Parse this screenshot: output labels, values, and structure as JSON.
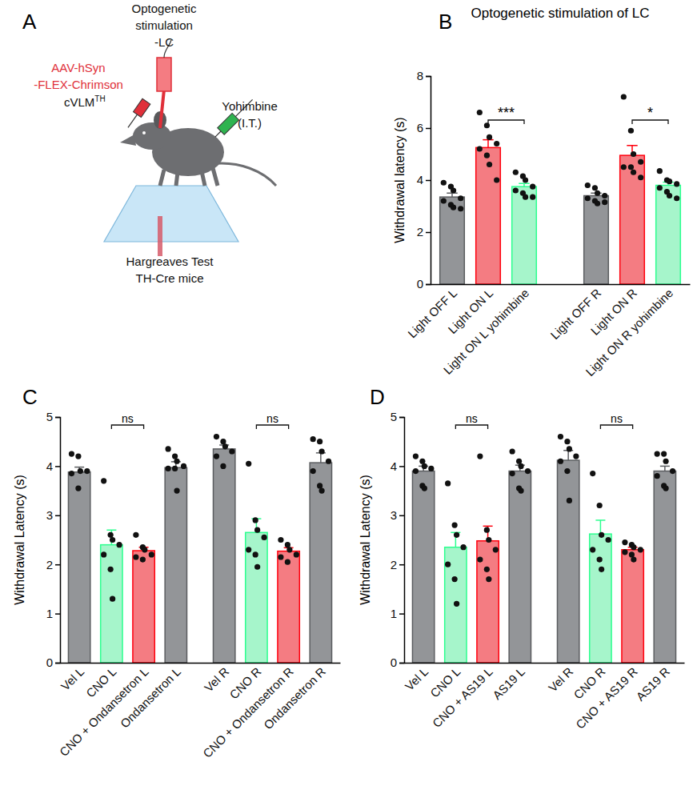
{
  "diagram": {
    "panel": "A",
    "labels": {
      "stimulation": [
        "Optogenetic",
        "stimulation",
        "-LC"
      ],
      "virus": [
        "AAV-hSyn",
        "-FLEX-Chrimson"
      ],
      "target": {
        "text": "cVLM",
        "superscript": "TH"
      },
      "drug": [
        "Yohimbine",
        "(I.T.)"
      ],
      "test": [
        "Hargreaves Test",
        "TH-Cre mice"
      ]
    }
  },
  "chart_data": [
    {
      "type": "bar",
      "panel": "B",
      "title": "Optogenetic stimulation of LC",
      "y_label": "Withdrawal latency (s)",
      "categories": [
        "Light OFF L",
        "Light ON L",
        "Light ON L yohimbine",
        "Light OFF R",
        "Light ON R",
        "Light ON R yohimbine"
      ],
      "values": [
        3.35,
        5.25,
        3.75,
        3.4,
        4.95,
        3.8
      ],
      "errors": [
        0.15,
        0.3,
        0.12,
        0.1,
        0.38,
        0.12
      ],
      "points": [
        [
          3.9,
          3.75,
          3.6,
          3.3,
          3.2,
          3.05,
          2.95,
          2.9
        ],
        [
          6.6,
          6.1,
          5.65,
          5.4,
          5.2,
          4.95,
          4.6,
          4.0
        ],
        [
          4.3,
          4.15,
          4.0,
          3.75,
          3.6,
          3.5,
          3.35,
          3.35
        ],
        [
          3.8,
          3.7,
          3.5,
          3.4,
          3.3,
          3.2,
          3.1,
          3.15
        ],
        [
          7.2,
          5.9,
          5.0,
          4.7,
          4.5,
          4.5,
          4.3,
          4.1
        ],
        [
          4.35,
          4.0,
          3.95,
          3.85,
          3.7,
          3.55,
          3.4,
          3.3
        ]
      ],
      "colors": [
        "#939598",
        "#f47c82",
        "#a6f5cb",
        "#939598",
        "#f47c82",
        "#a6f5cb"
      ],
      "ylim": [
        0,
        8
      ],
      "yticks": [
        0,
        2,
        4,
        6,
        8
      ],
      "annotations": [
        {
          "text": "***",
          "between": [
            "Light ON L",
            "Light ON L yohimbine"
          ]
        },
        {
          "text": "*",
          "between": [
            "Light ON R",
            "Light ON R yohimbine"
          ]
        }
      ]
    },
    {
      "type": "bar",
      "panel": "C",
      "y_label": "Withdrawal Latency (s)",
      "categories": [
        "Vel L",
        "CNO L",
        "CNO + Ondansetron L",
        "Ondansetron L",
        "Vel R",
        "CNO R",
        "CNO + Ondansetron R",
        "Ondansetron R"
      ],
      "values": [
        3.88,
        2.4,
        2.28,
        3.97,
        4.35,
        2.65,
        2.27,
        4.07
      ],
      "errors": [
        0.1,
        0.3,
        0.07,
        0.12,
        0.08,
        0.28,
        0.07,
        0.2
      ],
      "points": [
        [
          4.25,
          4.2,
          3.9,
          3.9,
          3.85,
          3.55
        ],
        [
          3.7,
          2.6,
          2.5,
          2.4,
          2.2,
          1.9,
          1.3
        ],
        [
          2.6,
          2.35,
          2.3,
          2.2,
          2.15,
          2.1
        ],
        [
          4.35,
          4.2,
          4.1,
          4.0,
          3.95,
          3.95,
          3.5
        ],
        [
          4.6,
          4.5,
          4.4,
          4.3,
          4.2,
          4.0
        ],
        [
          4.05,
          2.9,
          2.7,
          2.55,
          2.3,
          2.2,
          1.95
        ],
        [
          2.5,
          2.4,
          2.3,
          2.2,
          2.15,
          2.05
        ],
        [
          4.55,
          4.5,
          4.3,
          4.1,
          3.9,
          3.6,
          3.5
        ]
      ],
      "colors": [
        "#939598",
        "#a6f5cb",
        "#f47c82",
        "#939598",
        "#939598",
        "#a6f5cb",
        "#f47c82",
        "#939598"
      ],
      "ylim": [
        0,
        5
      ],
      "yticks": [
        0,
        1,
        2,
        3,
        4,
        5
      ],
      "annotations": [
        {
          "text": "ns",
          "between": [
            "CNO L",
            "CNO + Ondansetron L"
          ]
        },
        {
          "text": "ns",
          "between": [
            "CNO R",
            "CNO + Ondansetron R"
          ]
        }
      ]
    },
    {
      "type": "bar",
      "panel": "D",
      "y_label": "Withdrawal Latency (s)",
      "categories": [
        "Vel L",
        "CNO L",
        "CNO + AS19 L",
        "AS19 L",
        "Vel R",
        "CNO R",
        "CNO + AS19 R",
        "AS19 R"
      ],
      "values": [
        3.9,
        2.35,
        2.48,
        3.9,
        4.12,
        2.62,
        2.3,
        3.9
      ],
      "errors": [
        0.1,
        0.3,
        0.3,
        0.12,
        0.2,
        0.28,
        0.05,
        0.1
      ],
      "points": [
        [
          4.2,
          4.1,
          4.0,
          3.95,
          3.9,
          3.6,
          3.55
        ],
        [
          3.65,
          2.8,
          2.6,
          2.35,
          2.0,
          1.7,
          1.2
        ],
        [
          4.2,
          2.7,
          2.5,
          2.3,
          2.1,
          1.9,
          1.7
        ],
        [
          4.3,
          4.1,
          4.0,
          3.9,
          3.85,
          3.55,
          3.5
        ],
        [
          4.6,
          4.5,
          4.35,
          4.2,
          4.1,
          3.9,
          3.3
        ],
        [
          3.85,
          3.2,
          2.6,
          2.5,
          2.3,
          2.1,
          1.9
        ],
        [
          2.45,
          2.4,
          2.35,
          2.3,
          2.25,
          2.2,
          2.1
        ],
        [
          4.25,
          4.25,
          4.1,
          3.9,
          3.8,
          3.6,
          3.55
        ]
      ],
      "colors": [
        "#939598",
        "#a6f5cb",
        "#f47c82",
        "#939598",
        "#939598",
        "#a6f5cb",
        "#f47c82",
        "#939598"
      ],
      "ylim": [
        0,
        5
      ],
      "yticks": [
        0,
        1,
        2,
        3,
        4,
        5
      ],
      "annotations": [
        {
          "text": "ns",
          "between": [
            "CNO L",
            "CNO + AS19 L"
          ]
        },
        {
          "text": "ns",
          "between": [
            "CNO R",
            "CNO + AS19 R"
          ]
        }
      ]
    }
  ]
}
